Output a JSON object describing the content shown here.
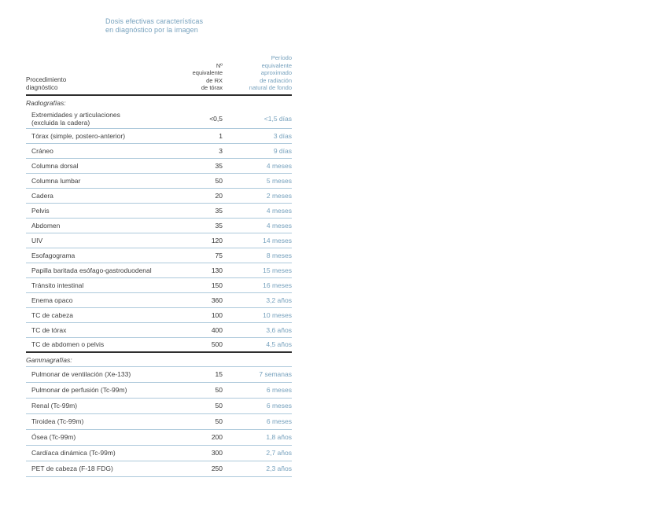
{
  "title": {
    "line1": "Dosis efectivas características",
    "line2": "en diagnóstico por la imagen"
  },
  "table": {
    "headers": {
      "procedure": "Procedimiento\ndiagnóstico",
      "n_rx": "Nº\nequivalente\nde RX\nde tórax",
      "period": "Período\nequivalente\naproximado\nde radiación\nnatural de fondo"
    },
    "sections": [
      {
        "label": "Radiografías:",
        "rows": [
          {
            "procedure": "Extremidades y articulaciones\n(excluida la cadera)",
            "n_rx": "<0,5",
            "period": "<1,5 días"
          },
          {
            "procedure": "Tórax (simple, postero-anterior)",
            "n_rx": "1",
            "period": "3 días"
          },
          {
            "procedure": "Cráneo",
            "n_rx": "3",
            "period": "9 días"
          },
          {
            "procedure": "Columna dorsal",
            "n_rx": "35",
            "period": "4 meses"
          },
          {
            "procedure": "Columna lumbar",
            "n_rx": "50",
            "period": "5 meses"
          },
          {
            "procedure": "Cadera",
            "n_rx": "20",
            "period": "2 meses"
          },
          {
            "procedure": "Pelvis",
            "n_rx": "35",
            "period": "4 meses"
          },
          {
            "procedure": "Abdomen",
            "n_rx": "35",
            "period": "4 meses"
          },
          {
            "procedure": "UIV",
            "n_rx": "120",
            "period": "14 meses"
          },
          {
            "procedure": "Esofagograma",
            "n_rx": "75",
            "period": "8 meses"
          },
          {
            "procedure": "Papilla baritada esófago-gastroduodenal",
            "n_rx": "130",
            "period": "15 meses"
          },
          {
            "procedure": "Tránsito intestinal",
            "n_rx": "150",
            "period": "16 meses"
          },
          {
            "procedure": "Enema opaco",
            "n_rx": "360",
            "period": "3,2 años"
          },
          {
            "procedure": "TC de cabeza",
            "n_rx": "100",
            "period": "10 meses"
          },
          {
            "procedure": "TC de tórax",
            "n_rx": "400",
            "period": "3,6 años"
          },
          {
            "procedure": "TC de abdomen o pelvis",
            "n_rx": "500",
            "period": "4,5 años"
          }
        ]
      },
      {
        "label": "Gammagrafías:",
        "rows": [
          {
            "procedure": "Pulmonar de ventilación (Xe-133)",
            "n_rx": "15",
            "period": "7 semanas"
          },
          {
            "procedure": "Pulmonar de perfusión (Tc-99m)",
            "n_rx": "50",
            "period": "6 meses"
          },
          {
            "procedure": "Renal (Tc-99m)",
            "n_rx": "50",
            "period": "6 meses"
          },
          {
            "procedure": "Tiroidea (Tc-99m)",
            "n_rx": "50",
            "period": "6 meses"
          },
          {
            "procedure": "Ósea (Tc-99m)",
            "n_rx": "200",
            "period": "1,8 años"
          },
          {
            "procedure": "Cardíaca dinámica (Tc-99m)",
            "n_rx": "300",
            "period": "2,7 años"
          },
          {
            "procedure": "PET de cabeza (F-18 FDG)",
            "n_rx": "250",
            "period": "2,3 años"
          }
        ]
      }
    ]
  },
  "colors": {
    "accent_blue": "#76a1bd",
    "divider_blue": "#adc9db",
    "heavy_rule": "#2e2e2e",
    "text": "#3f3f3f"
  }
}
